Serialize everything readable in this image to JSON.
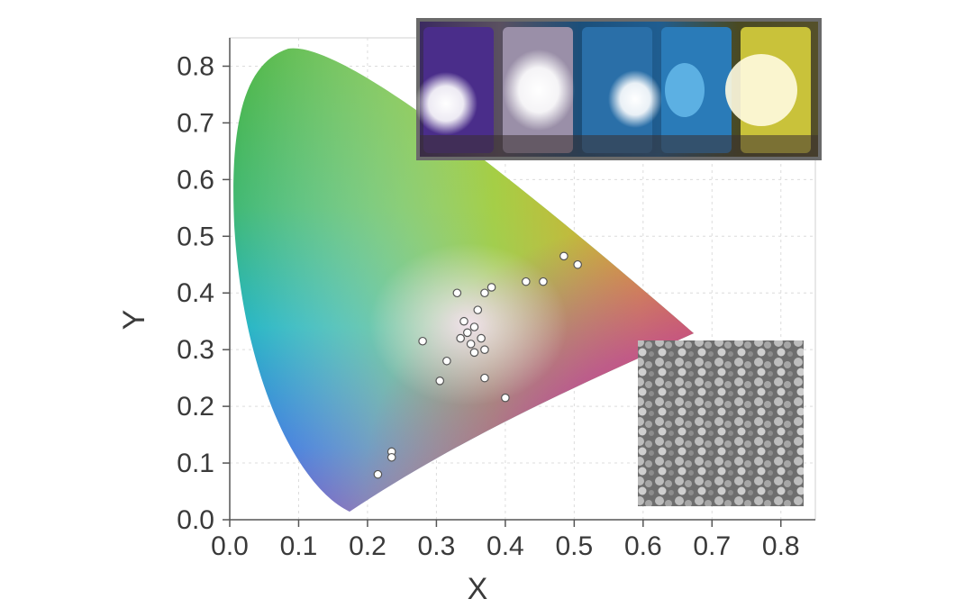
{
  "chart_data": {
    "type": "scatter",
    "title": "",
    "xlabel": "X",
    "ylabel": "Y",
    "xlim": [
      0.0,
      0.85
    ],
    "ylim": [
      0.0,
      0.85
    ],
    "x_ticks": [
      "0.0",
      "0.1",
      "0.2",
      "0.3",
      "0.4",
      "0.5",
      "0.6",
      "0.7",
      "0.8"
    ],
    "y_ticks": [
      "0.0",
      "0.1",
      "0.2",
      "0.3",
      "0.4",
      "0.5",
      "0.6",
      "0.7",
      "0.8"
    ],
    "grid": true,
    "background": "CIE 1931 chromaticity diagram",
    "series": [
      {
        "points": [
          {
            "x": 0.33,
            "y": 0.4
          },
          {
            "x": 0.37,
            "y": 0.4
          },
          {
            "x": 0.38,
            "y": 0.41
          },
          {
            "x": 0.34,
            "y": 0.35
          },
          {
            "x": 0.36,
            "y": 0.37
          },
          {
            "x": 0.355,
            "y": 0.34
          },
          {
            "x": 0.345,
            "y": 0.33
          },
          {
            "x": 0.335,
            "y": 0.32
          },
          {
            "x": 0.35,
            "y": 0.31
          },
          {
            "x": 0.365,
            "y": 0.32
          },
          {
            "x": 0.37,
            "y": 0.3
          },
          {
            "x": 0.355,
            "y": 0.295
          },
          {
            "x": 0.28,
            "y": 0.315
          },
          {
            "x": 0.315,
            "y": 0.28
          },
          {
            "x": 0.305,
            "y": 0.245
          },
          {
            "x": 0.37,
            "y": 0.25
          },
          {
            "x": 0.4,
            "y": 0.215
          },
          {
            "x": 0.43,
            "y": 0.42
          },
          {
            "x": 0.455,
            "y": 0.42
          },
          {
            "x": 0.485,
            "y": 0.465
          },
          {
            "x": 0.505,
            "y": 0.45
          },
          {
            "x": 0.235,
            "y": 0.12
          },
          {
            "x": 0.235,
            "y": 0.11
          },
          {
            "x": 0.215,
            "y": 0.08
          }
        ],
        "color": "#ffffff"
      }
    ]
  },
  "insets": {
    "top": "photographs of five light-emitting devices: violet-white, white, blue, blue, yellow",
    "bottom_right": "grayscale micrograph of granular surface"
  }
}
